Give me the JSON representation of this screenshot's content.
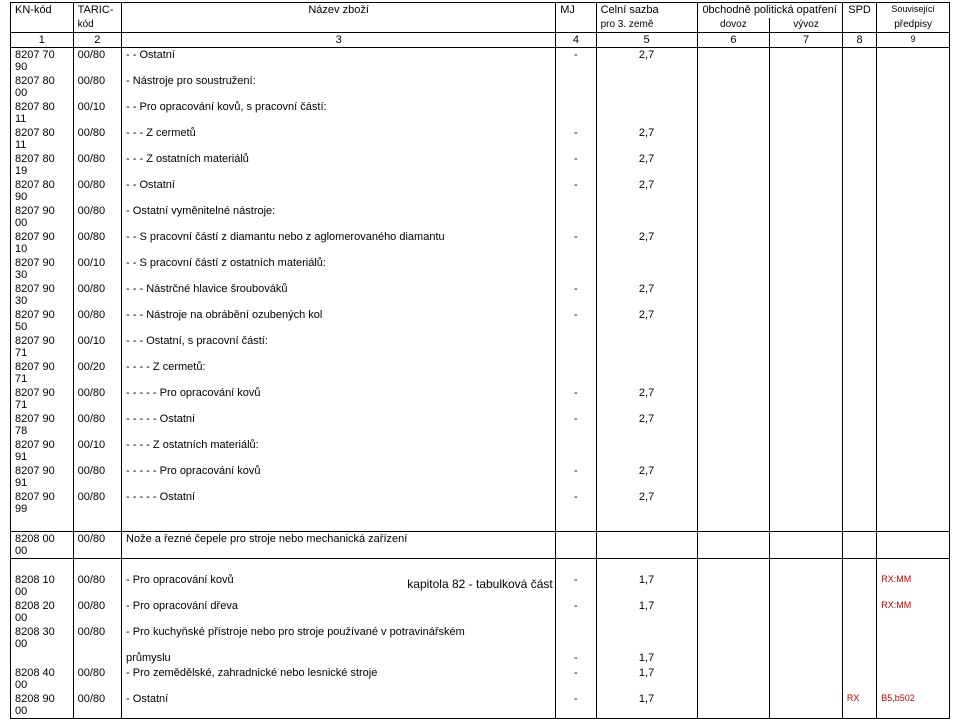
{
  "header": {
    "r1": {
      "c1": "KN-kód",
      "c2": "TARIC-",
      "c3": "Název zboží",
      "c4": "MJ",
      "c5": "Celní sazba",
      "c67": "0bchodně politická opatření",
      "c8": "SPD",
      "c9": "Související"
    },
    "r2": {
      "c2": "kód",
      "c5": "pro 3. země",
      "c6": "dovoz",
      "c7": "vývoz",
      "c9": "předpisy"
    },
    "nums": {
      "c1": "1",
      "c2": "2",
      "c3": "3",
      "c4": "4",
      "c5": "5",
      "c6": "6",
      "c7": "7",
      "c8": "8",
      "c9": "9"
    }
  },
  "rows": [
    {
      "kn": "8207 70 90",
      "tc": "00/80",
      "desc": "- - Ostatní",
      "mj": "-",
      "sazba": "2,7"
    },
    {
      "kn": "8207 80 00",
      "tc": "00/80",
      "desc": "- Nástroje pro soustružení:",
      "bold": true
    },
    {
      "kn": "8207 80 11",
      "tc": "00/10",
      "desc": "- - Pro opracování kovů, s pracovní částí:"
    },
    {
      "kn": "8207 80 11",
      "tc": "00/80",
      "desc": "- - - Z cermetů",
      "mj": "-",
      "sazba": "2,7"
    },
    {
      "kn": "8207 80 19",
      "tc": "00/80",
      "desc": "- - - Z ostatních materiálů",
      "mj": "-",
      "sazba": "2,7"
    },
    {
      "kn": "8207 80 90",
      "tc": "00/80",
      "desc": "- - Ostatní",
      "mj": "-",
      "sazba": "2,7"
    },
    {
      "kn": "8207 90 00",
      "tc": "00/80",
      "desc": "- Ostatní vyměnitelné nástroje:",
      "bold": true
    },
    {
      "kn": "8207 90 10",
      "tc": "00/80",
      "desc": "- - S pracovní částí z diamantu nebo z aglomerovaného diamantu",
      "mj": "-",
      "sazba": "2,7"
    },
    {
      "kn": "8207 90 30",
      "tc": "00/10",
      "desc": "- - S pracovní částí z ostatních materiálů:"
    },
    {
      "kn": "8207 90 30",
      "tc": "00/80",
      "desc": "- - - Nástrčné hlavice šroubováků",
      "mj": "-",
      "sazba": "2,7"
    },
    {
      "kn": "8207 90 50",
      "tc": "00/80",
      "desc": "- - - Nástroje na obrábění ozubených kol",
      "mj": "-",
      "sazba": "2,7"
    },
    {
      "kn": "8207 90 71",
      "tc": "00/10",
      "desc": "- - - Ostatní, s pracovní částí:"
    },
    {
      "kn": "8207 90 71",
      "tc": "00/20",
      "desc": "- - - - Z cermetů:"
    },
    {
      "kn": "8207 90 71",
      "tc": "00/80",
      "desc": "- - - - - Pro opracování kovů",
      "mj": "-",
      "sazba": "2,7"
    },
    {
      "kn": "8207 90 78",
      "tc": "00/80",
      "desc": "- - - - - Ostatní",
      "mj": "-",
      "sazba": "2,7"
    },
    {
      "kn": "8207 90 91",
      "tc": "00/10",
      "desc": "- - - - Z ostatních materiálů:"
    },
    {
      "kn": "8207 90 91",
      "tc": "00/80",
      "desc": "- - - - - Pro opracování kovů",
      "mj": "-",
      "sazba": "2,7"
    },
    {
      "kn": "8207 90 99",
      "tc": "00/80",
      "desc": "- - - - - Ostatní",
      "mj": "-",
      "sazba": "2,7"
    }
  ],
  "section": {
    "kn": "8208 00 00",
    "tc": "00/80",
    "desc": "Nože a řezné čepele pro stroje nebo mechanická zařízení"
  },
  "rows2": [
    {
      "kn": "8208 10 00",
      "tc": "00/80",
      "desc": "- Pro opracování kovů",
      "mj": "-",
      "sazba": "1,7",
      "c9": "RX:MM",
      "bold": true
    },
    {
      "kn": "8208 20 00",
      "tc": "00/80",
      "desc": "- Pro opracování dřeva",
      "mj": "-",
      "sazba": "1,7",
      "c9": "RX:MM",
      "bold": true
    },
    {
      "kn": "8208 30 00",
      "tc": "00/80",
      "desc": "- Pro kuchyňské přístroje nebo pro stroje používané v potravinářském",
      "bold": true
    },
    {
      "kn": "",
      "tc": "",
      "desc": "průmyslu",
      "mj": "-",
      "sazba": "1,7",
      "bold": true
    },
    {
      "kn": "8208 40 00",
      "tc": "00/80",
      "desc": "- Pro zemědělské, zahradnické nebo lesnické stroje",
      "mj": "-",
      "sazba": "1,7",
      "bold": true
    },
    {
      "kn": "8208 90 00",
      "tc": "00/80",
      "desc": "- Ostatní",
      "mj": "-",
      "sazba": "1,7",
      "c8": "RX",
      "c9": "B5,b502",
      "bold": true
    }
  ],
  "footer": "kapitola 82 - tabulková část"
}
